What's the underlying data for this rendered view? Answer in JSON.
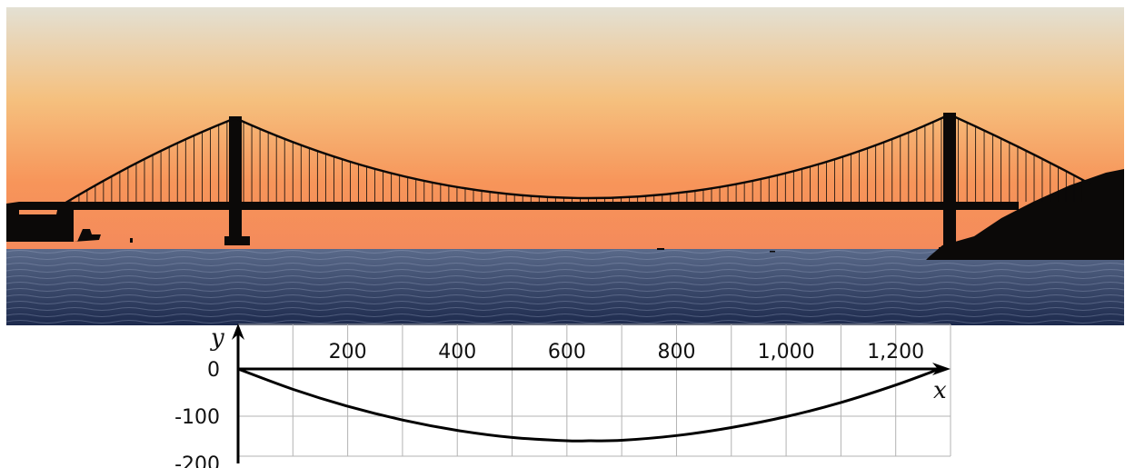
{
  "photo": {
    "subject": "golden-gate-bridge-at-sunset",
    "colors": {
      "sky_top": "#e3e0d3",
      "sky_mid": "#f5c07e",
      "sky_low": "#f7955a",
      "sky_horizon": "#f48a5b",
      "water_top": "#5a6a8a",
      "water_bottom": "#1d2a4d",
      "silhouette": "#0b0908"
    }
  },
  "chart_data": {
    "type": "line",
    "x_ticks": [
      "200",
      "400",
      "600",
      "800",
      "1,000",
      "1,200"
    ],
    "y_ticks": [
      "0",
      "-100",
      "-200"
    ],
    "xlabel": "x",
    "ylabel": "y",
    "xlim": [
      0,
      1300
    ],
    "ylim": [
      -200,
      0
    ],
    "grid": true,
    "series": [
      {
        "x": [
          0,
          100,
          200,
          300,
          400,
          500,
          600,
          640,
          700,
          800,
          900,
          1000,
          1100,
          1200,
          1280
        ],
        "y": [
          0,
          -43,
          -79,
          -108,
          -130,
          -145,
          -152,
          -152,
          -151,
          -141,
          -124,
          -101,
          -71,
          -34,
          0
        ]
      }
    ],
    "colors": {
      "curve": "#000000",
      "grid": "#b3b3b3",
      "axis": "#000000"
    }
  }
}
